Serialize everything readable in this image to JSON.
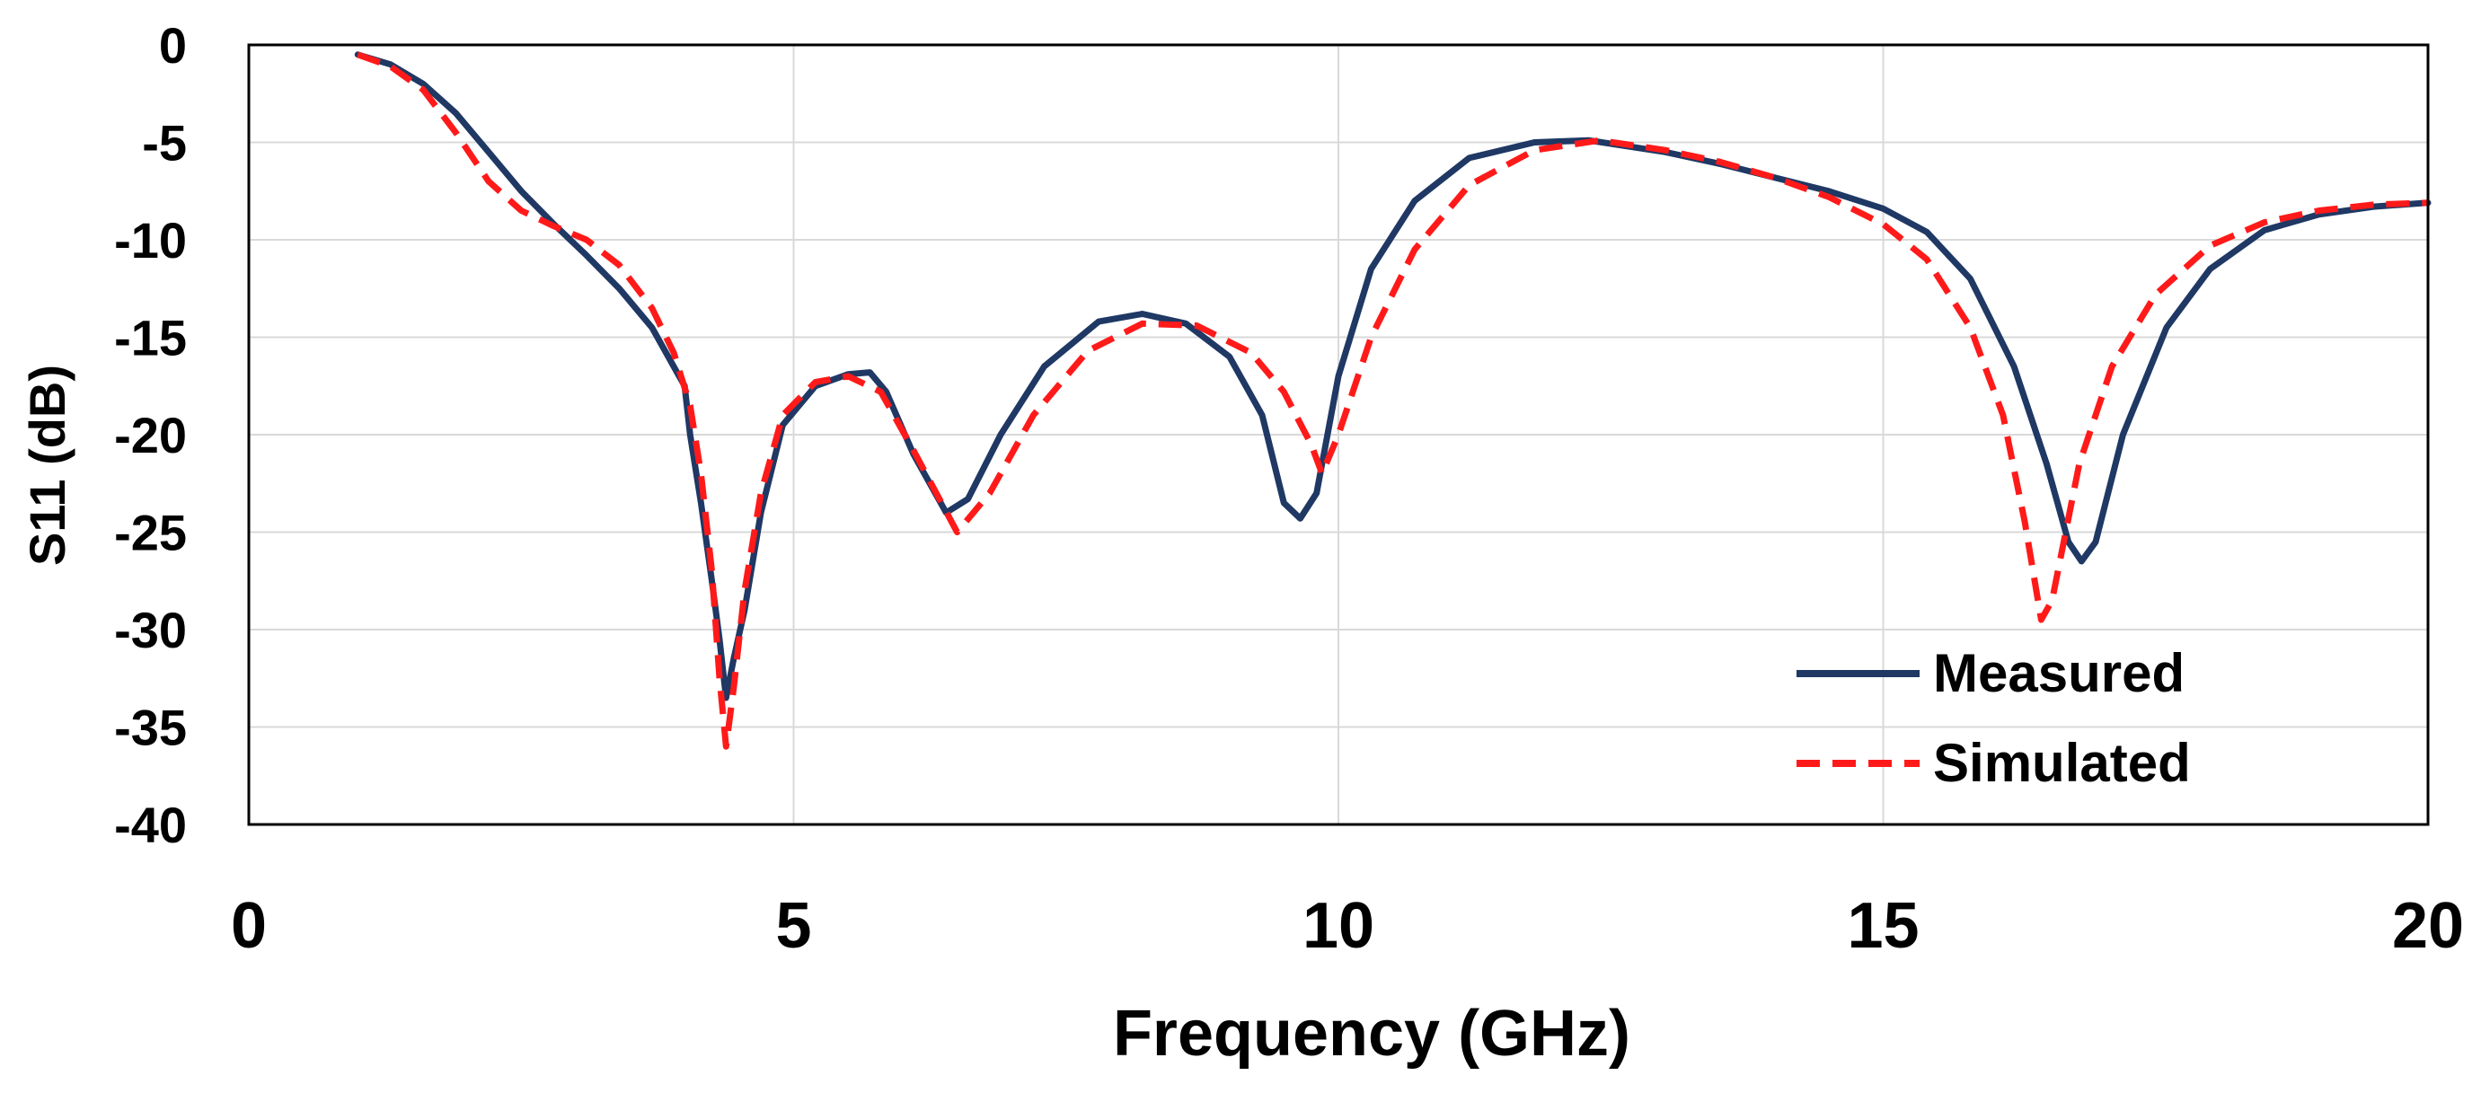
{
  "chart_data": {
    "type": "line",
    "title": "",
    "xlabel": "Frequency (GHz)",
    "ylabel": "S11 (dB)",
    "xlim": [
      0,
      20
    ],
    "ylim": [
      -40,
      0
    ],
    "xticks": [
      0,
      5,
      10,
      15,
      20
    ],
    "yticks": [
      0,
      -5,
      -10,
      -15,
      -20,
      -25,
      -30,
      -35,
      -40
    ],
    "grid": true,
    "legend_position": "bottom-right",
    "series": [
      {
        "name": "Measured",
        "color": "#1f3864",
        "style": "solid",
        "points": [
          [
            1.0,
            -0.5
          ],
          [
            1.3,
            -1.0
          ],
          [
            1.6,
            -2.0
          ],
          [
            1.9,
            -3.5
          ],
          [
            2.2,
            -5.5
          ],
          [
            2.5,
            -7.5
          ],
          [
            2.8,
            -9.2
          ],
          [
            3.1,
            -10.8
          ],
          [
            3.4,
            -12.5
          ],
          [
            3.7,
            -14.5
          ],
          [
            3.95,
            -17.0
          ],
          [
            4.0,
            -17.5
          ],
          [
            4.05,
            -20.0
          ],
          [
            4.15,
            -23.5
          ],
          [
            4.25,
            -27.5
          ],
          [
            4.32,
            -30.5
          ],
          [
            4.38,
            -33.5
          ],
          [
            4.45,
            -31.5
          ],
          [
            4.55,
            -29.0
          ],
          [
            4.7,
            -24.0
          ],
          [
            4.9,
            -19.5
          ],
          [
            5.2,
            -17.5
          ],
          [
            5.5,
            -16.9
          ],
          [
            5.7,
            -16.8
          ],
          [
            5.85,
            -17.8
          ],
          [
            6.1,
            -21.0
          ],
          [
            6.4,
            -24.0
          ],
          [
            6.6,
            -23.3
          ],
          [
            6.9,
            -20.0
          ],
          [
            7.3,
            -16.5
          ],
          [
            7.8,
            -14.2
          ],
          [
            8.2,
            -13.8
          ],
          [
            8.6,
            -14.3
          ],
          [
            9.0,
            -16.0
          ],
          [
            9.3,
            -19.0
          ],
          [
            9.5,
            -23.5
          ],
          [
            9.65,
            -24.3
          ],
          [
            9.8,
            -23.0
          ],
          [
            10.0,
            -17.0
          ],
          [
            10.3,
            -11.5
          ],
          [
            10.7,
            -8.0
          ],
          [
            11.2,
            -5.8
          ],
          [
            11.8,
            -5.0
          ],
          [
            12.3,
            -4.9
          ],
          [
            13.0,
            -5.5
          ],
          [
            13.5,
            -6.1
          ],
          [
            14.0,
            -6.8
          ],
          [
            14.5,
            -7.5
          ],
          [
            15.0,
            -8.4
          ],
          [
            15.4,
            -9.6
          ],
          [
            15.8,
            -12.0
          ],
          [
            16.2,
            -16.5
          ],
          [
            16.5,
            -21.5
          ],
          [
            16.7,
            -25.5
          ],
          [
            16.82,
            -26.5
          ],
          [
            16.95,
            -25.5
          ],
          [
            17.2,
            -20.0
          ],
          [
            17.6,
            -14.5
          ],
          [
            18.0,
            -11.5
          ],
          [
            18.5,
            -9.5
          ],
          [
            19.0,
            -8.7
          ],
          [
            19.5,
            -8.3
          ],
          [
            20.0,
            -8.1
          ]
        ]
      },
      {
        "name": "Simulated",
        "color": "#ff1a1a",
        "style": "dashed",
        "points": [
          [
            1.0,
            -0.5
          ],
          [
            1.3,
            -1.1
          ],
          [
            1.6,
            -2.3
          ],
          [
            1.9,
            -4.5
          ],
          [
            2.2,
            -7.0
          ],
          [
            2.5,
            -8.5
          ],
          [
            2.8,
            -9.3
          ],
          [
            3.1,
            -10.0
          ],
          [
            3.4,
            -11.3
          ],
          [
            3.7,
            -13.5
          ],
          [
            3.9,
            -15.8
          ],
          [
            4.05,
            -18.5
          ],
          [
            4.15,
            -22.0
          ],
          [
            4.25,
            -27.0
          ],
          [
            4.32,
            -32.5
          ],
          [
            4.38,
            -36.0
          ],
          [
            4.45,
            -33.0
          ],
          [
            4.55,
            -28.0
          ],
          [
            4.7,
            -23.0
          ],
          [
            4.9,
            -19.0
          ],
          [
            5.2,
            -17.3
          ],
          [
            5.5,
            -17.0
          ],
          [
            5.8,
            -17.8
          ],
          [
            6.1,
            -20.8
          ],
          [
            6.5,
            -25.0
          ],
          [
            6.8,
            -23.0
          ],
          [
            7.2,
            -19.0
          ],
          [
            7.7,
            -15.7
          ],
          [
            8.2,
            -14.3
          ],
          [
            8.7,
            -14.4
          ],
          [
            9.2,
            -15.8
          ],
          [
            9.5,
            -17.8
          ],
          [
            9.75,
            -20.5
          ],
          [
            9.85,
            -22.0
          ],
          [
            10.0,
            -20.0
          ],
          [
            10.3,
            -15.0
          ],
          [
            10.7,
            -10.5
          ],
          [
            11.2,
            -7.2
          ],
          [
            11.8,
            -5.4
          ],
          [
            12.4,
            -4.9
          ],
          [
            13.0,
            -5.4
          ],
          [
            13.5,
            -6.0
          ],
          [
            14.0,
            -6.8
          ],
          [
            14.5,
            -7.8
          ],
          [
            15.0,
            -9.2
          ],
          [
            15.4,
            -11.0
          ],
          [
            15.8,
            -14.5
          ],
          [
            16.1,
            -19.0
          ],
          [
            16.3,
            -24.5
          ],
          [
            16.45,
            -29.5
          ],
          [
            16.55,
            -28.5
          ],
          [
            16.8,
            -21.5
          ],
          [
            17.1,
            -16.5
          ],
          [
            17.5,
            -12.8
          ],
          [
            18.0,
            -10.3
          ],
          [
            18.5,
            -9.1
          ],
          [
            19.0,
            -8.5
          ],
          [
            19.5,
            -8.2
          ],
          [
            20.0,
            -8.1
          ]
        ]
      }
    ]
  }
}
